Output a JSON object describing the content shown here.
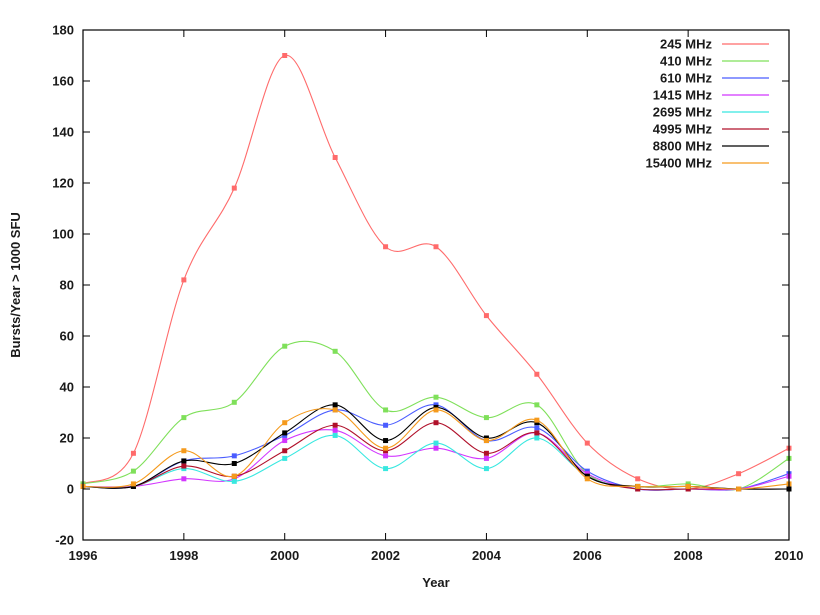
{
  "chart_data": {
    "type": "line",
    "title": "",
    "xlabel": "Year",
    "ylabel": "Bursts/Year > 1000 SFU",
    "xlim": [
      1996,
      2010
    ],
    "ylim": [
      -20,
      180
    ],
    "x_ticks": [
      "1996",
      "1998",
      "2000",
      "2002",
      "2004",
      "2006",
      "2008",
      "2010"
    ],
    "y_ticks": [
      "-20",
      "0",
      "20",
      "40",
      "60",
      "80",
      "100",
      "120",
      "140",
      "160",
      "180"
    ],
    "grid": false,
    "legend_position": "top-right",
    "x": [
      1996,
      1997,
      1998,
      1999,
      2000,
      2001,
      2002,
      2003,
      2004,
      2005,
      2006,
      2007,
      2008,
      2009,
      2010
    ],
    "series": [
      {
        "name": "245 MHz",
        "color": "#ff6b6b",
        "values": [
          2,
          14,
          82,
          118,
          170,
          130,
          95,
          95,
          68,
          45,
          18,
          4,
          0,
          6,
          16
        ]
      },
      {
        "name": "410 MHz",
        "color": "#7fe05a",
        "values": [
          2,
          7,
          28,
          34,
          56,
          54,
          31,
          36,
          28,
          33,
          6,
          1,
          2,
          0,
          12
        ]
      },
      {
        "name": "610 MHz",
        "color": "#4a5cff",
        "values": [
          1,
          1,
          11,
          13,
          21,
          31,
          25,
          33,
          19,
          24,
          7,
          0,
          0,
          0,
          6
        ]
      },
      {
        "name": "1415 MHz",
        "color": "#d236ff",
        "values": [
          1,
          1,
          4,
          4,
          19,
          23,
          13,
          16,
          12,
          22,
          6,
          0,
          0,
          0,
          5
        ]
      },
      {
        "name": "2695 MHz",
        "color": "#38e8e0",
        "values": [
          1,
          1,
          8,
          3,
          12,
          21,
          8,
          18,
          8,
          20,
          5,
          0,
          0,
          0,
          0
        ]
      },
      {
        "name": "4995 MHz",
        "color": "#b0102a",
        "values": [
          1,
          1,
          9,
          5,
          15,
          25,
          15,
          26,
          14,
          22,
          5,
          0,
          0,
          0,
          0
        ]
      },
      {
        "name": "8800 MHz",
        "color": "#000000",
        "values": [
          1,
          1,
          11,
          10,
          22,
          33,
          19,
          32,
          20,
          26,
          5,
          1,
          1,
          0,
          0
        ]
      },
      {
        "name": "15400 MHz",
        "color": "#f59a1c",
        "values": [
          1,
          2,
          15,
          5,
          26,
          31,
          16,
          31,
          19,
          27,
          4,
          1,
          1,
          0,
          2
        ]
      }
    ]
  }
}
